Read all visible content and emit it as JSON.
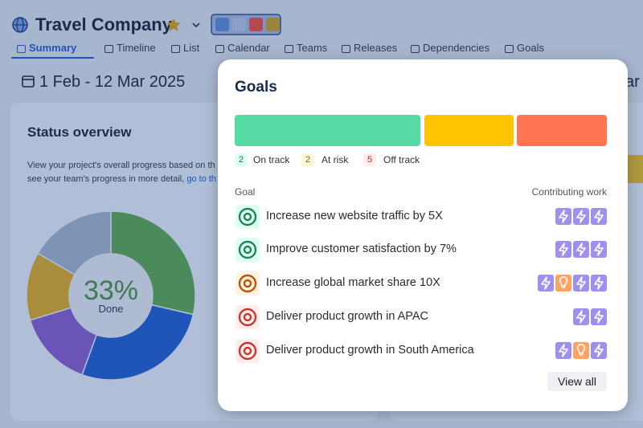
{
  "header": {
    "title": "Travel Company"
  },
  "tabs": [
    "Summary",
    "Timeline",
    "List",
    "Calendar",
    "Teams",
    "Releases",
    "Dependencies",
    "Goals"
  ],
  "date_range": "1 Feb - 12 Mar 2025",
  "right_partial": "ar",
  "status_overview": {
    "title": "Status overview",
    "description_line1": "View your project's overall progress based on th",
    "description_line2": "see your team's progress in more detail, ",
    "link": "go to th",
    "percent": "33%",
    "percent_label": "Done"
  },
  "goals_panel": {
    "title": "Goals",
    "legend": [
      {
        "count": 2,
        "label": "On track"
      },
      {
        "count": 2,
        "label": "At risk"
      },
      {
        "count": 5,
        "label": "Off track"
      }
    ],
    "column_goal": "Goal",
    "column_work": "Contributing work",
    "goals": [
      "Increase new website traffic by 5X",
      "Improve customer satisfaction by 7%",
      "Increase global market share 10X",
      "Deliver product growth in APAC",
      "Deliver product growth in South America"
    ],
    "button": "View all"
  }
}
